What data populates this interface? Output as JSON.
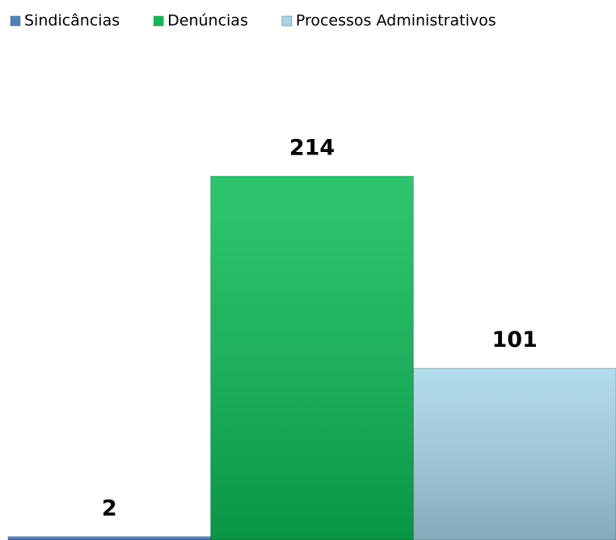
{
  "chart_data": {
    "type": "bar",
    "series": [
      {
        "name": "Sindicâncias",
        "color": "#4f81bd",
        "values": [
          2
        ]
      },
      {
        "name": "Denúncias",
        "color": "#0abb55",
        "values": [
          214
        ]
      },
      {
        "name": "Processos Administrativos",
        "color": "#a5d5e8",
        "values": [
          101
        ]
      }
    ],
    "legend": "top"
  }
}
